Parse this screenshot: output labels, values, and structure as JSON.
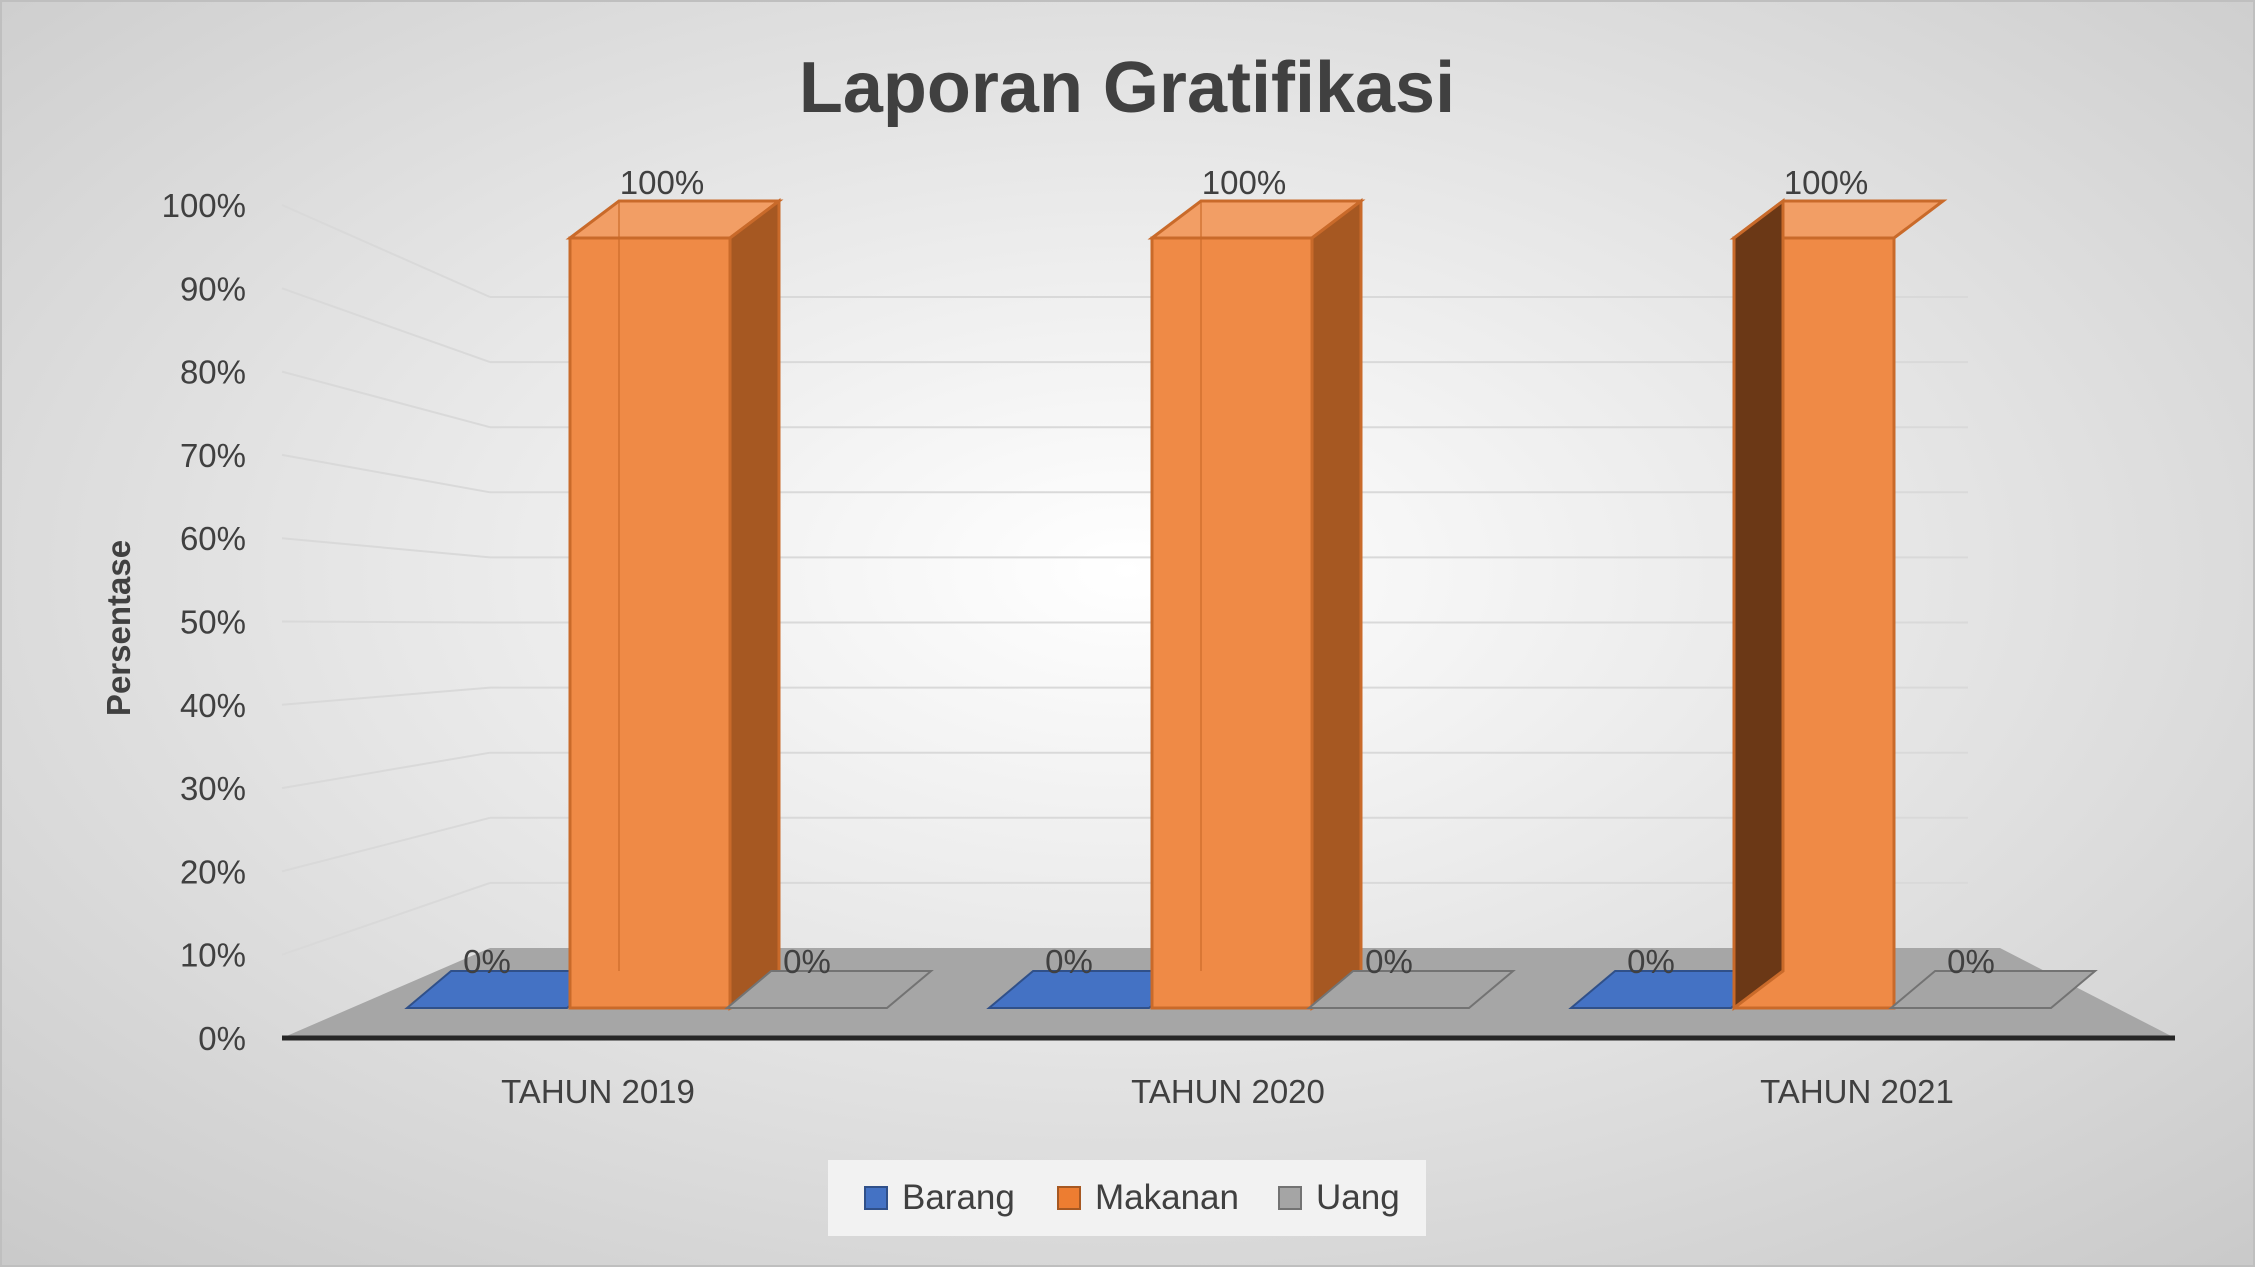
{
  "colors": {
    "background_center": "#ffffff",
    "background_edge": "#c9c9c9",
    "gridline": "#d9d9d9",
    "floor": "#a6a6a6",
    "axis_line": "#262626",
    "text": "#404040",
    "legend_bg": "#f2f2f2"
  },
  "chart_data": {
    "type": "bar",
    "title": "Laporan Gratifikasi",
    "xlabel": "",
    "ylabel": "Persentase",
    "categories": [
      "TAHUN 2019",
      "TAHUN 2020",
      "TAHUN 2021"
    ],
    "series": [
      {
        "name": "Barang",
        "values": [
          0,
          0,
          0
        ],
        "value_labels": [
          "0%",
          "0%",
          "0%"
        ],
        "color": "#4472c4"
      },
      {
        "name": "Makanan",
        "values": [
          100,
          100,
          100
        ],
        "value_labels": [
          "100%",
          "100%",
          "100%"
        ],
        "color": "#ed7d31"
      },
      {
        "name": "Uang",
        "values": [
          0,
          0,
          0
        ],
        "value_labels": [
          "0%",
          "0%",
          "0%"
        ],
        "color": "#a5a5a5"
      }
    ],
    "ylim": [
      0,
      100
    ],
    "yticks": [
      "0%",
      "10%",
      "20%",
      "30%",
      "40%",
      "50%",
      "60%",
      "70%",
      "80%",
      "90%",
      "100%"
    ],
    "grid": true,
    "legend_position": "bottom",
    "style": "3d-column"
  }
}
